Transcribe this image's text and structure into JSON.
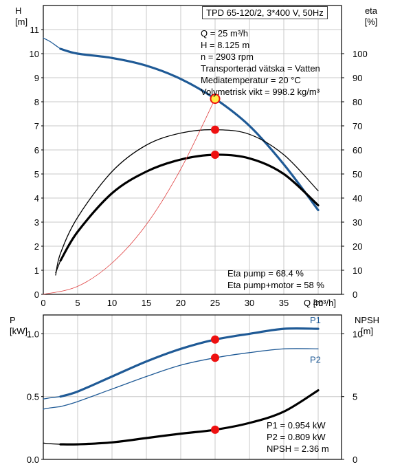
{
  "header": "TPD 65-120/2, 3*400 V, 50Hz",
  "op_point": [
    "Q = 25 m³/h",
    "H = 8.125 m",
    "n = 2903 rpm",
    "Transporterad vätska = Vatten",
    "Mediatemperatur = 20 °C",
    "Volymetrisk vikt = 998.2 kg/m³"
  ],
  "eta_text": [
    "Eta pump = 68.4 %",
    "Eta pump+motor = 58 %"
  ],
  "power_text": [
    "P1 = 0.954 kW",
    "P2 = 0.809 kW",
    "NPSH = 2.36 m"
  ],
  "colors": {
    "blue": "#1f5a96",
    "red_line": "#e04040",
    "marker": "#ee1111",
    "marker_hl": "#ffee44",
    "grid": "#c8c8c8"
  },
  "chart_data": [
    {
      "type": "line",
      "name": "pump-curve-top",
      "x_label": "Q [m³/h]",
      "y_left_label": [
        "H",
        "[m]"
      ],
      "y_right_label": [
        "eta",
        "[%]"
      ],
      "x_ticks": [
        0,
        5,
        10,
        15,
        20,
        25,
        30,
        35,
        40
      ],
      "y_left_ticks": [
        0,
        1,
        2,
        3,
        4,
        5,
        6,
        7,
        8,
        9,
        10,
        11
      ],
      "y_right_ticks": [
        0,
        10,
        20,
        30,
        40,
        50,
        60,
        70,
        80,
        90,
        100
      ],
      "xlim": [
        0,
        40
      ],
      "ylim_left": [
        0,
        12
      ],
      "ylim_right": [
        0,
        120
      ],
      "grid": true,
      "series": [
        {
          "axis": "left",
          "style": "thin",
          "color": "#1f5a96",
          "x": [
            0,
            1,
            2,
            2.5
          ],
          "y": [
            10.65,
            10.5,
            10.3,
            10.2
          ]
        },
        {
          "axis": "left",
          "style": "bold",
          "color": "#1f5a96",
          "x": [
            2.5,
            5,
            10,
            15,
            20,
            25,
            30,
            35,
            40
          ],
          "y": [
            10.2,
            10.0,
            9.82,
            9.5,
            8.95,
            8.125,
            7.0,
            5.4,
            3.5
          ]
        },
        {
          "axis": "right",
          "style": "thin",
          "color": "#000000",
          "x": [
            1.8,
            2.5,
            5,
            10,
            15,
            20,
            25,
            30,
            35,
            40
          ],
          "y": [
            8,
            17,
            32,
            51,
            62,
            67,
            68.4,
            66.5,
            58,
            43
          ]
        },
        {
          "axis": "right",
          "style": "bold",
          "color": "#000000",
          "x": [
            2.5,
            5,
            10,
            15,
            20,
            25,
            30,
            35,
            40
          ],
          "y": [
            14,
            26,
            42,
            51,
            56,
            58,
            56.5,
            50,
            37
          ]
        },
        {
          "axis": "right",
          "style": "thin",
          "color": "#000000",
          "x": [
            1.8,
            2.5
          ],
          "y": [
            9,
            14
          ]
        },
        {
          "axis": "left",
          "style": "red",
          "color": "#e04040",
          "x": [
            0,
            5,
            10,
            15,
            20,
            25
          ],
          "y": [
            0,
            0.33,
            1.3,
            2.9,
            5.2,
            8.125
          ]
        }
      ],
      "markers": [
        {
          "axis": "left",
          "x": 25,
          "y": 8.125,
          "highlight": true
        },
        {
          "axis": "right",
          "x": 25,
          "y": 68.4
        },
        {
          "axis": "right",
          "x": 25,
          "y": 58
        }
      ]
    },
    {
      "type": "line",
      "name": "power-curve-bottom",
      "y_left_label": [
        "P",
        "[kW]"
      ],
      "y_right_label": [
        "NPSH",
        "[m]"
      ],
      "y_left_ticks": [
        0.0,
        0.5,
        1.0
      ],
      "y_left_tick_labels": [
        "0.0",
        "0.5",
        "1.0"
      ],
      "y_right_ticks": [
        0,
        5,
        10
      ],
      "xlim": [
        0,
        40
      ],
      "ylim_left": [
        0,
        1.15
      ],
      "ylim_right": [
        0,
        11.5
      ],
      "grid": true,
      "series": [
        {
          "axis": "left",
          "style": "thin",
          "color": "#1f5a96",
          "name": "",
          "x": [
            0,
            1,
            2.5
          ],
          "y": [
            0.48,
            0.49,
            0.5
          ]
        },
        {
          "axis": "left",
          "style": "bold",
          "color": "#1f5a96",
          "name": "P1",
          "x": [
            2.5,
            5,
            10,
            15,
            20,
            25,
            30,
            35,
            40
          ],
          "y": [
            0.5,
            0.54,
            0.66,
            0.78,
            0.88,
            0.954,
            1.0,
            1.04,
            1.04
          ]
        },
        {
          "axis": "left",
          "style": "thin",
          "color": "#1f5a96",
          "name": "",
          "x": [
            0,
            1,
            2.5
          ],
          "y": [
            0.4,
            0.41,
            0.42
          ]
        },
        {
          "axis": "left",
          "style": "thin",
          "color": "#1f5a96",
          "name": "P2",
          "x": [
            2.5,
            5,
            10,
            15,
            20,
            25,
            30,
            35,
            40
          ],
          "y": [
            0.42,
            0.46,
            0.56,
            0.66,
            0.75,
            0.809,
            0.85,
            0.88,
            0.88
          ]
        },
        {
          "axis": "right",
          "style": "thin",
          "color": "#000000",
          "name": "",
          "x": [
            0,
            1,
            2.5
          ],
          "y": [
            1.3,
            1.25,
            1.2
          ]
        },
        {
          "axis": "right",
          "style": "bold",
          "color": "#000000",
          "name": "NPSH",
          "x": [
            2.5,
            5,
            10,
            15,
            20,
            25,
            30,
            35,
            40
          ],
          "y": [
            1.2,
            1.2,
            1.35,
            1.7,
            2.05,
            2.36,
            2.9,
            3.8,
            5.5
          ]
        }
      ],
      "markers": [
        {
          "axis": "left",
          "x": 25,
          "y": 0.954
        },
        {
          "axis": "left",
          "x": 25,
          "y": 0.809
        },
        {
          "axis": "right",
          "x": 25,
          "y": 2.36
        }
      ]
    }
  ]
}
